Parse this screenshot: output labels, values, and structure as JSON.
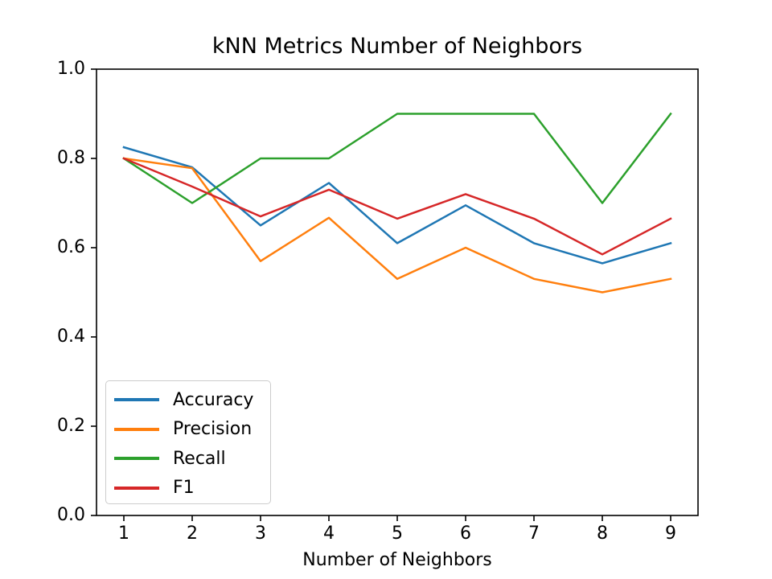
{
  "chart_data": {
    "type": "line",
    "title": "kNN Metrics Number of Neighbors",
    "xlabel": "Number of Neighbors",
    "ylabel": "",
    "x": [
      1,
      2,
      3,
      4,
      5,
      6,
      7,
      8,
      9
    ],
    "xtick_labels": [
      "1",
      "2",
      "3",
      "4",
      "5",
      "6",
      "7",
      "8",
      "9"
    ],
    "ytick_values": [
      0.0,
      0.2,
      0.4,
      0.6,
      0.8,
      1.0
    ],
    "ytick_labels": [
      "0.0",
      "0.2",
      "0.4",
      "0.6",
      "0.8",
      "1.0"
    ],
    "xlim": [
      0.6,
      9.4
    ],
    "ylim": [
      0.0,
      1.0
    ],
    "grid": false,
    "legend_position": "lower left",
    "series": [
      {
        "name": "Accuracy",
        "color": "#1f77b4",
        "values": [
          0.825,
          0.78,
          0.65,
          0.745,
          0.61,
          0.695,
          0.61,
          0.565,
          0.61
        ]
      },
      {
        "name": "Precision",
        "color": "#ff7f0e",
        "values": [
          0.8,
          0.778,
          0.57,
          0.667,
          0.53,
          0.6,
          0.53,
          0.5,
          0.53
        ]
      },
      {
        "name": "Recall",
        "color": "#2ca02c",
        "values": [
          0.8,
          0.7,
          0.8,
          0.8,
          0.9,
          0.9,
          0.9,
          0.7,
          0.9
        ]
      },
      {
        "name": "F1",
        "color": "#d62728",
        "values": [
          0.8,
          0.737,
          0.67,
          0.73,
          0.665,
          0.72,
          0.665,
          0.585,
          0.665
        ]
      }
    ],
    "axis_color": "#000000"
  }
}
